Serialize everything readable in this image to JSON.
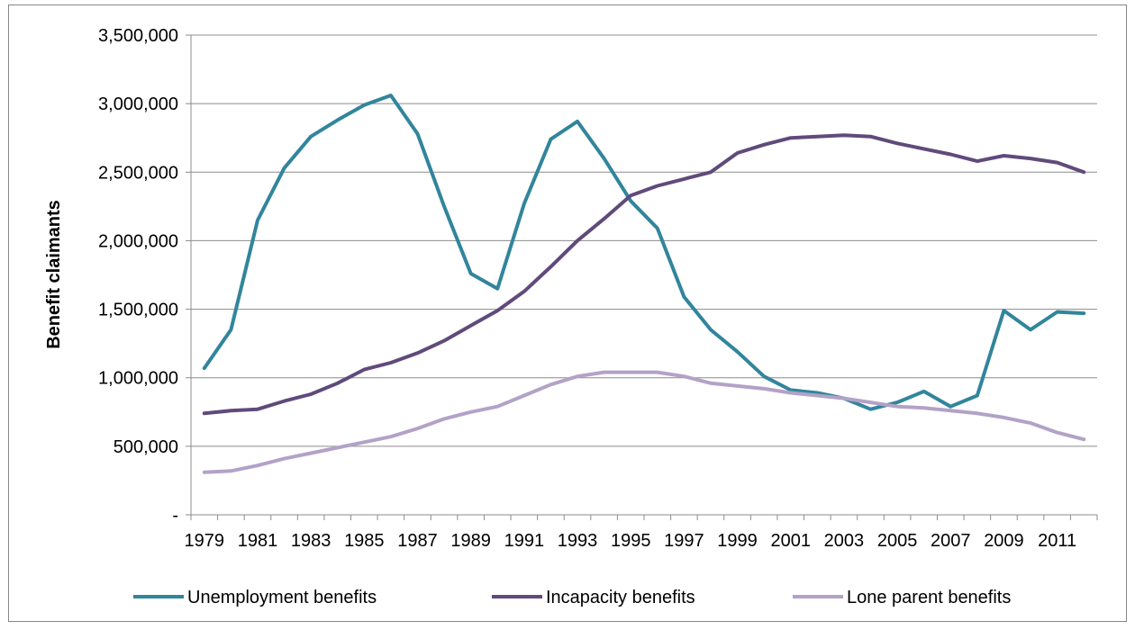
{
  "chart_data": {
    "type": "line",
    "title": "",
    "xlabel": "",
    "ylabel": "Benefit claimants",
    "ylim": [
      0,
      3500000
    ],
    "ytick_values": [
      0,
      500000,
      1000000,
      1500000,
      2000000,
      2500000,
      3000000,
      3500000
    ],
    "ytick_labels": [
      "-",
      "500,000",
      "1,000,000",
      "1,500,000",
      "2,000,000",
      "2,500,000",
      "3,000,000",
      "3,500,000"
    ],
    "x": [
      1979,
      1980,
      1981,
      1982,
      1983,
      1984,
      1985,
      1986,
      1987,
      1988,
      1989,
      1990,
      1991,
      1992,
      1993,
      1994,
      1995,
      1996,
      1997,
      1998,
      1999,
      2000,
      2001,
      2002,
      2003,
      2004,
      2005,
      2006,
      2007,
      2008,
      2009,
      2010,
      2011,
      2012
    ],
    "xtick_labels": [
      "1979",
      "1981",
      "1983",
      "1985",
      "1987",
      "1989",
      "1991",
      "1993",
      "1995",
      "1997",
      "1999",
      "2001",
      "2003",
      "2005",
      "2007",
      "2009",
      "2011"
    ],
    "grid": true,
    "legend_position": "bottom",
    "series": [
      {
        "name": "Unemployment benefits",
        "color": "#31859c",
        "values": [
          1070000,
          1350000,
          2150000,
          2530000,
          2760000,
          2880000,
          2990000,
          3060000,
          2780000,
          2250000,
          1760000,
          1650000,
          2270000,
          2740000,
          2870000,
          2600000,
          2290000,
          2090000,
          1590000,
          1350000,
          1190000,
          1010000,
          910000,
          890000,
          850000,
          770000,
          820000,
          900000,
          790000,
          870000,
          1490000,
          1350000,
          1480000,
          1470000
        ]
      },
      {
        "name": "Incapacity benefits",
        "color": "#604a7b",
        "values": [
          740000,
          760000,
          770000,
          830000,
          880000,
          960000,
          1060000,
          1110000,
          1180000,
          1270000,
          1380000,
          1490000,
          1630000,
          1810000,
          2000000,
          2160000,
          2330000,
          2400000,
          2450000,
          2500000,
          2640000,
          2700000,
          2750000,
          2760000,
          2770000,
          2760000,
          2710000,
          2670000,
          2630000,
          2580000,
          2620000,
          2600000,
          2570000,
          2500000
        ]
      },
      {
        "name": "Lone parent benefits",
        "color": "#b3a2c7",
        "values": [
          310000,
          320000,
          360000,
          410000,
          450000,
          490000,
          530000,
          570000,
          630000,
          700000,
          750000,
          790000,
          870000,
          950000,
          1010000,
          1040000,
          1040000,
          1040000,
          1010000,
          960000,
          940000,
          920000,
          890000,
          870000,
          850000,
          820000,
          790000,
          780000,
          760000,
          740000,
          710000,
          670000,
          600000,
          550000
        ]
      }
    ]
  }
}
